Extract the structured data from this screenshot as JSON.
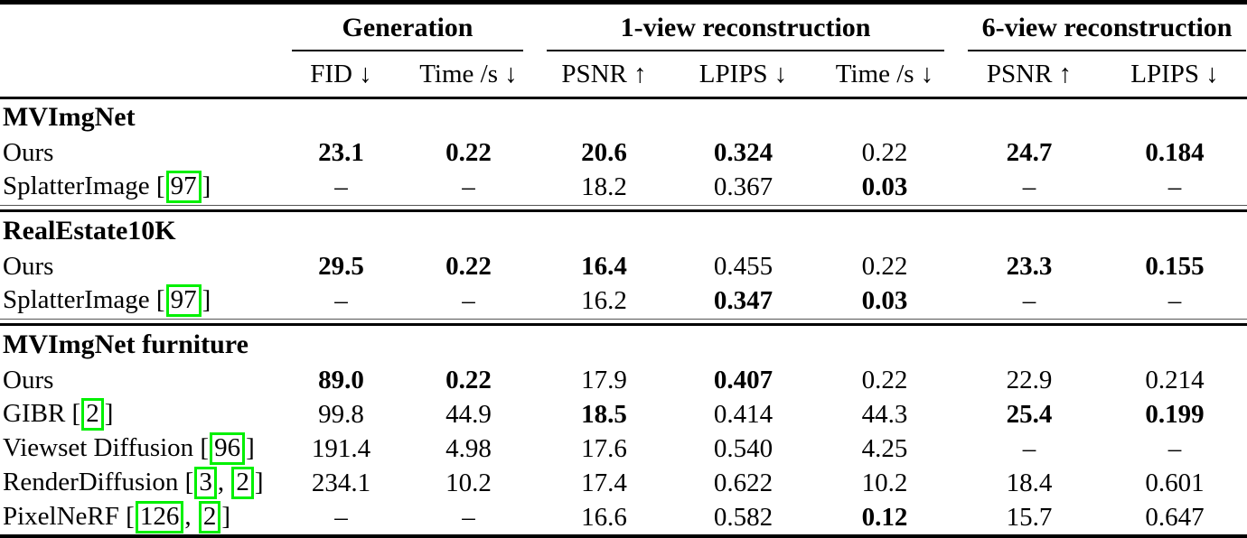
{
  "table": {
    "cite_box_color": "#00f000",
    "groups": [
      {
        "label": "Generation",
        "colspan": 2
      },
      {
        "label": "1-view reconstruction",
        "colspan": 3
      },
      {
        "label": "6-view reconstruction",
        "colspan": 2
      }
    ],
    "columns": [
      "FID ↓",
      "Time /s ↓",
      "PSNR ↑",
      "LPIPS ↓",
      "Time /s ↓",
      "PSNR ↑",
      "LPIPS ↓"
    ],
    "sections": [
      {
        "title": "MVImgNet",
        "rows": [
          {
            "method": "Ours",
            "cites": [],
            "values": [
              {
                "v": "23.1",
                "b": true
              },
              {
                "v": "0.22",
                "b": true
              },
              {
                "v": "20.6",
                "b": true
              },
              {
                "v": "0.324",
                "b": true
              },
              {
                "v": "0.22",
                "b": false
              },
              {
                "v": "24.7",
                "b": true
              },
              {
                "v": "0.184",
                "b": true
              }
            ]
          },
          {
            "method": "SplatterImage",
            "cites": [
              "97"
            ],
            "values": [
              {
                "v": "–",
                "b": false
              },
              {
                "v": "–",
                "b": false
              },
              {
                "v": "18.2",
                "b": false
              },
              {
                "v": "0.367",
                "b": false
              },
              {
                "v": "0.03",
                "b": true
              },
              {
                "v": "–",
                "b": false
              },
              {
                "v": "–",
                "b": false
              }
            ]
          }
        ]
      },
      {
        "title": "RealEstate10K",
        "rows": [
          {
            "method": "Ours",
            "cites": [],
            "values": [
              {
                "v": "29.5",
                "b": true
              },
              {
                "v": "0.22",
                "b": true
              },
              {
                "v": "16.4",
                "b": true
              },
              {
                "v": "0.455",
                "b": false
              },
              {
                "v": "0.22",
                "b": false
              },
              {
                "v": "23.3",
                "b": true
              },
              {
                "v": "0.155",
                "b": true
              }
            ]
          },
          {
            "method": "SplatterImage",
            "cites": [
              "97"
            ],
            "values": [
              {
                "v": "–",
                "b": false
              },
              {
                "v": "–",
                "b": false
              },
              {
                "v": "16.2",
                "b": false
              },
              {
                "v": "0.347",
                "b": true
              },
              {
                "v": "0.03",
                "b": true
              },
              {
                "v": "–",
                "b": false
              },
              {
                "v": "–",
                "b": false
              }
            ]
          }
        ]
      },
      {
        "title": "MVImgNet furniture",
        "rows": [
          {
            "method": "Ours",
            "cites": [],
            "values": [
              {
                "v": "89.0",
                "b": true
              },
              {
                "v": "0.22",
                "b": true
              },
              {
                "v": "17.9",
                "b": false
              },
              {
                "v": "0.407",
                "b": true
              },
              {
                "v": "0.22",
                "b": false
              },
              {
                "v": "22.9",
                "b": false
              },
              {
                "v": "0.214",
                "b": false
              }
            ]
          },
          {
            "method": "GIBR",
            "cites": [
              "2"
            ],
            "values": [
              {
                "v": "99.8",
                "b": false
              },
              {
                "v": "44.9",
                "b": false
              },
              {
                "v": "18.5",
                "b": true
              },
              {
                "v": "0.414",
                "b": false
              },
              {
                "v": "44.3",
                "b": false
              },
              {
                "v": "25.4",
                "b": true
              },
              {
                "v": "0.199",
                "b": true
              }
            ]
          },
          {
            "method": "Viewset Diffusion",
            "cites": [
              "96"
            ],
            "values": [
              {
                "v": "191.4",
                "b": false
              },
              {
                "v": "4.98",
                "b": false
              },
              {
                "v": "17.6",
                "b": false
              },
              {
                "v": "0.540",
                "b": false
              },
              {
                "v": "4.25",
                "b": false
              },
              {
                "v": "–",
                "b": false
              },
              {
                "v": "–",
                "b": false
              }
            ]
          },
          {
            "method": "RenderDiffusion",
            "cites": [
              "3",
              "2"
            ],
            "values": [
              {
                "v": "234.1",
                "b": false
              },
              {
                "v": "10.2",
                "b": false
              },
              {
                "v": "17.4",
                "b": false
              },
              {
                "v": "0.622",
                "b": false
              },
              {
                "v": "10.2",
                "b": false
              },
              {
                "v": "18.4",
                "b": false
              },
              {
                "v": "0.601",
                "b": false
              }
            ]
          },
          {
            "method": "PixelNeRF",
            "cites": [
              "126",
              "2"
            ],
            "values": [
              {
                "v": "–",
                "b": false
              },
              {
                "v": "–",
                "b": false
              },
              {
                "v": "16.6",
                "b": false
              },
              {
                "v": "0.582",
                "b": false
              },
              {
                "v": "0.12",
                "b": true
              },
              {
                "v": "15.7",
                "b": false
              },
              {
                "v": "0.647",
                "b": false
              }
            ]
          }
        ]
      }
    ]
  }
}
